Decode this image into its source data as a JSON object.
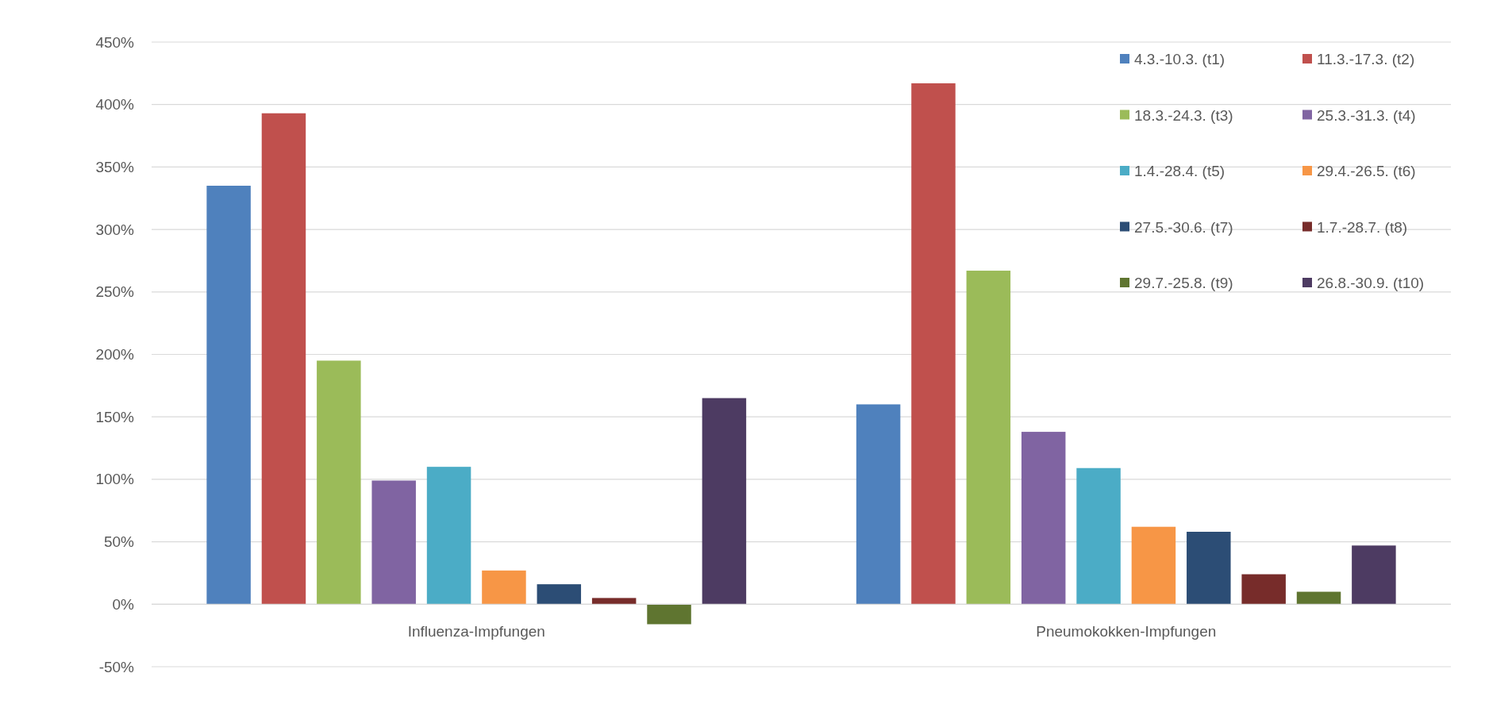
{
  "chart_data": {
    "type": "bar",
    "categories": [
      "Influenza-Impfungen",
      "Pneumokokken-Impfungen"
    ],
    "series": [
      {
        "name": "4.3.-10.3. (t1)",
        "color": "#4f81bd",
        "values": [
          335,
          160
        ]
      },
      {
        "name": "11.3.-17.3. (t2)",
        "color": "#c0504d",
        "values": [
          393,
          417
        ]
      },
      {
        "name": "18.3.-24.3. (t3)",
        "color": "#9bbb59",
        "values": [
          195,
          267
        ]
      },
      {
        "name": "25.3.-31.3. (t4)",
        "color": "#8064a2",
        "values": [
          99,
          138
        ]
      },
      {
        "name": "1.4.-28.4. (t5)",
        "color": "#4bacc6",
        "values": [
          110,
          109
        ]
      },
      {
        "name": "29.4.-26.5. (t6)",
        "color": "#f79646",
        "values": [
          27,
          62
        ]
      },
      {
        "name": "27.5.-30.6. (t7)",
        "color": "#2c4d75",
        "values": [
          16,
          58
        ]
      },
      {
        "name": "1.7.-28.7. (t8)",
        "color": "#772c2a",
        "values": [
          5,
          24
        ]
      },
      {
        "name": "29.7.-25.8. (t9)",
        "color": "#5f7530",
        "values": [
          -16,
          10
        ]
      },
      {
        "name": "26.8.-30.9. (t10)",
        "color": "#4d3b62",
        "values": [
          165,
          47
        ]
      }
    ],
    "ylim": [
      -50,
      450
    ],
    "yticks": [
      {
        "value": -50,
        "label": "-50%"
      },
      {
        "value": 0,
        "label": "0%"
      },
      {
        "value": 50,
        "label": "50%"
      },
      {
        "value": 100,
        "label": "100%"
      },
      {
        "value": 150,
        "label": "150%"
      },
      {
        "value": 200,
        "label": "200%"
      },
      {
        "value": 250,
        "label": "250%"
      },
      {
        "value": 300,
        "label": "300%"
      },
      {
        "value": 350,
        "label": "350%"
      },
      {
        "value": 400,
        "label": "400%"
      },
      {
        "value": 450,
        "label": "450%"
      }
    ],
    "grid": "y",
    "legend": "top right"
  }
}
